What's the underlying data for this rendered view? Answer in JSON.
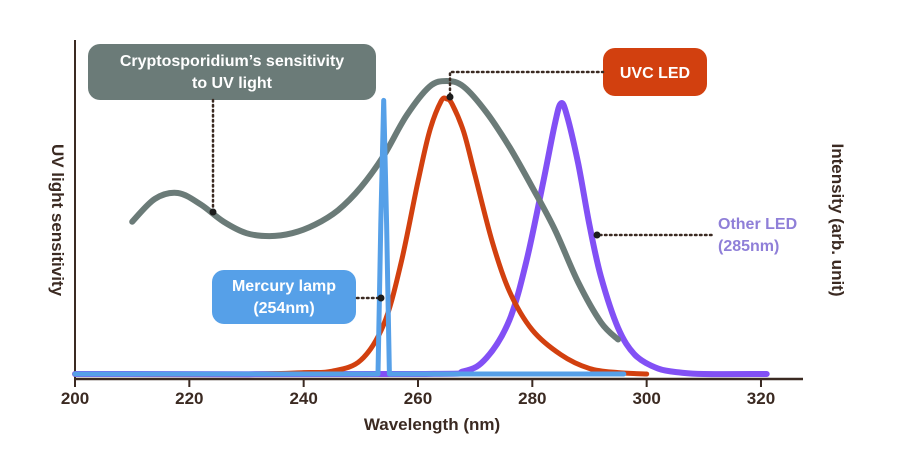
{
  "colors": {
    "sensitivity": "#6b7b78",
    "uvc_led": "#d2400f",
    "mercury": "#56a0e8",
    "other_led": "#8250f5",
    "axis": "#3b2a22",
    "baseline_violet": "#8f7fd8"
  },
  "chart_data": {
    "type": "line",
    "xlabel": "Wavelength (nm)",
    "ylabel_left": "UV light sensitivity",
    "ylabel_right": "Intensity (arb. unit)",
    "xlim": [
      200,
      327
    ],
    "ylim": [
      0,
      1
    ],
    "xticks": [
      200,
      220,
      240,
      260,
      280,
      300,
      320
    ],
    "tick_labels": [
      "200",
      "220",
      "240",
      "260",
      "280",
      "300",
      "320"
    ],
    "series": [
      {
        "key": "sensitivity",
        "name": "Cryptosporidium's sensitivity to UV light",
        "x": [
          210,
          214,
          218,
          222,
          226,
          230,
          234,
          238,
          242,
          246,
          250,
          254,
          258,
          262,
          265,
          268,
          272,
          276,
          280,
          284,
          288,
          292,
          295
        ],
        "values": [
          0.53,
          0.61,
          0.63,
          0.59,
          0.53,
          0.49,
          0.48,
          0.49,
          0.52,
          0.57,
          0.65,
          0.76,
          0.9,
          1.0,
          1.02,
          1.0,
          0.91,
          0.79,
          0.65,
          0.5,
          0.32,
          0.18,
          0.12
        ]
      },
      {
        "key": "uvc",
        "name": "UVC LED",
        "x": [
          200,
          230,
          240,
          245,
          250,
          254,
          257,
          260,
          262,
          264,
          265,
          266,
          268,
          270,
          273,
          276,
          280,
          285,
          290,
          295,
          300
        ],
        "values": [
          0.0,
          0.0,
          0.005,
          0.01,
          0.05,
          0.18,
          0.4,
          0.7,
          0.88,
          0.99,
          1.0,
          0.98,
          0.88,
          0.72,
          0.48,
          0.3,
          0.16,
          0.07,
          0.02,
          0.005,
          0.0
        ]
      },
      {
        "key": "mercury",
        "name": "Mercury lamp (254nm)",
        "x": [
          200,
          252,
          253,
          253.5,
          254,
          254.5,
          255,
          255.5,
          256,
          296
        ],
        "values": [
          0.0,
          0.0,
          0.0,
          0.55,
          1.0,
          0.55,
          0.0,
          0.0,
          0.0,
          0.0
        ]
      },
      {
        "key": "other",
        "name": "Other LED (285nm)",
        "x": [
          200,
          260,
          268,
          272,
          276,
          279,
          282,
          284,
          285,
          286,
          288,
          290,
          292,
          295,
          298,
          302,
          306,
          310,
          321
        ],
        "values": [
          0.0,
          0.0,
          0.01,
          0.06,
          0.2,
          0.42,
          0.72,
          0.93,
          1.0,
          0.96,
          0.78,
          0.55,
          0.36,
          0.17,
          0.07,
          0.02,
          0.005,
          0.0,
          0.0
        ]
      }
    ],
    "annotations": [
      {
        "key": "sensitivity",
        "text_lines": [
          "Cryptosporidium’s sensitivity",
          "to UV light"
        ]
      },
      {
        "key": "uvc",
        "text_lines": [
          "UVC LED"
        ]
      },
      {
        "key": "mercury",
        "text_lines": [
          "Mercury lamp",
          "(254nm)"
        ]
      },
      {
        "key": "other",
        "text_lines": [
          "Other LED",
          "(285nm)"
        ]
      }
    ],
    "grid": false
  }
}
